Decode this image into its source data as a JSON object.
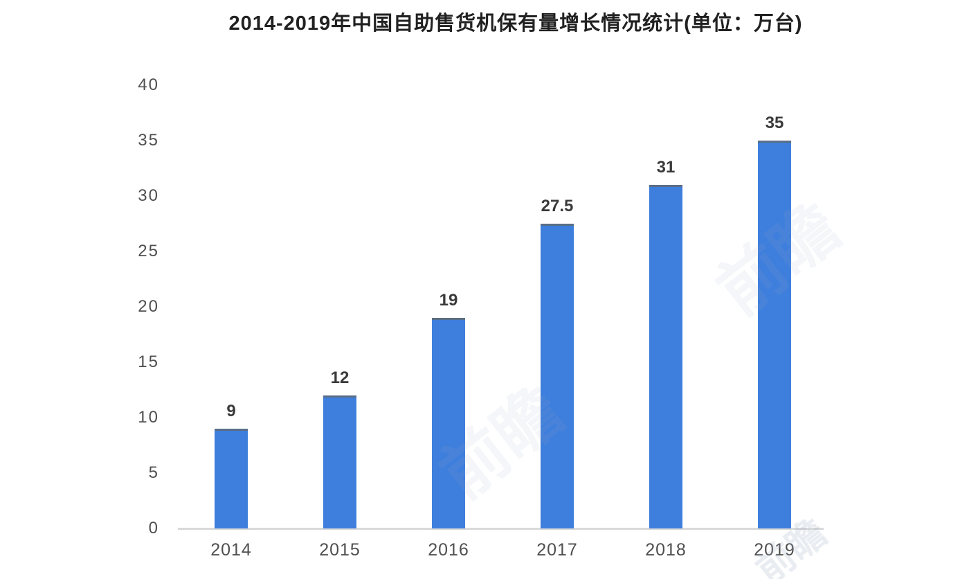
{
  "chart_data": {
    "type": "bar",
    "title": "2014-2019年中国自助售货机保有量增长情况统计(单位：万台)",
    "categories": [
      "2014",
      "2015",
      "2016",
      "2017",
      "2018",
      "2019"
    ],
    "values": [
      9,
      12,
      19,
      27.5,
      31,
      35
    ],
    "value_labels": [
      "9",
      "12",
      "19",
      "27.5",
      "31",
      "35"
    ],
    "xlabel": "",
    "ylabel": "",
    "unit": "万台",
    "ylim": [
      0,
      40
    ],
    "ytick_step": 5,
    "yticks": [
      0,
      5,
      10,
      15,
      20,
      25,
      30,
      35,
      40
    ],
    "grid": false,
    "legend": false,
    "colors": {
      "bar": "#3E7EDC",
      "bar_top_edge": "#5A6E87",
      "axis_line": "#D9D9D9",
      "title_text": "#212121",
      "value_label": "#3A3A3A",
      "tick_label": "#4F4F4F"
    }
  },
  "watermarks": [
    {
      "text": "前瞻"
    },
    {
      "text": "前瞻"
    },
    {
      "text": "前瞻"
    }
  ]
}
